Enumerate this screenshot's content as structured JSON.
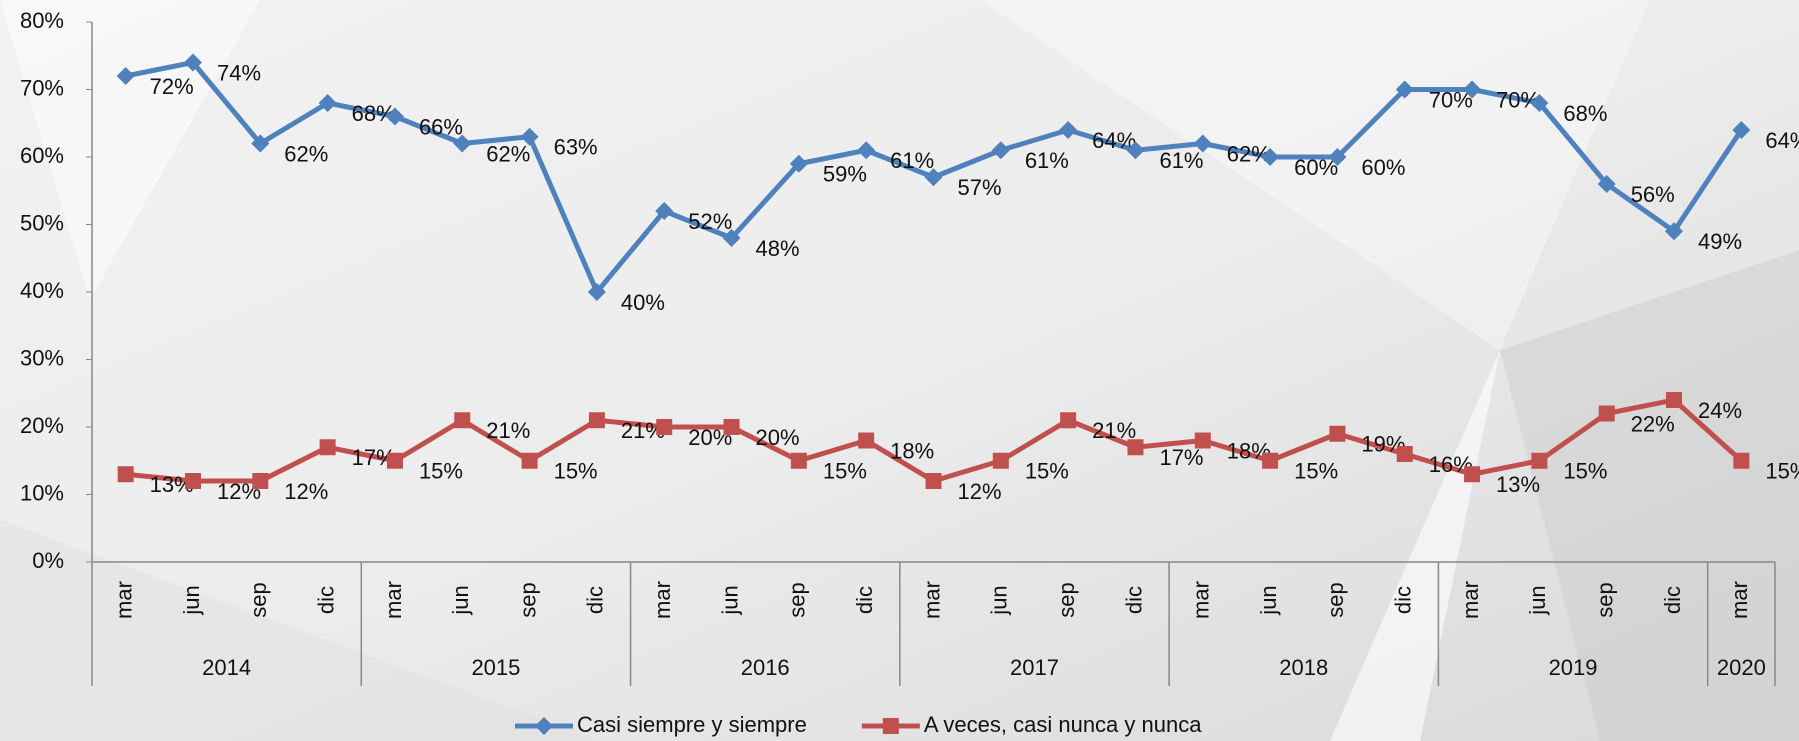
{
  "chart_data": {
    "type": "line",
    "groups": [
      {
        "label": "2014",
        "categories": [
          "mar",
          "jun",
          "sep",
          "dic"
        ]
      },
      {
        "label": "2015",
        "categories": [
          "mar",
          "jun",
          "sep",
          "dic"
        ]
      },
      {
        "label": "2016",
        "categories": [
          "mar",
          "jun",
          "sep",
          "dic"
        ]
      },
      {
        "label": "2017",
        "categories": [
          "mar",
          "jun",
          "sep",
          "dic"
        ]
      },
      {
        "label": "2018",
        "categories": [
          "mar",
          "jun",
          "sep",
          "dic"
        ]
      },
      {
        "label": "2019",
        "categories": [
          "mar",
          "jun",
          "sep",
          "dic"
        ]
      },
      {
        "label": "2020",
        "categories": [
          "mar"
        ]
      }
    ],
    "series": [
      {
        "name": "Casi siempre y siempre",
        "color": "#4f81bd",
        "marker": "diamond",
        "values": [
          72,
          74,
          62,
          68,
          66,
          62,
          63,
          40,
          52,
          48,
          59,
          61,
          57,
          61,
          64,
          61,
          62,
          60,
          60,
          70,
          70,
          68,
          56,
          49,
          64
        ],
        "value_labels": [
          "72%",
          "74%",
          "62%",
          "68%",
          "66%",
          "62%",
          "63%",
          "40%",
          "52%",
          "48%",
          "59%",
          "61%",
          "57%",
          "61%",
          "64%",
          "61%",
          "62%",
          "60%",
          "60%",
          "70%",
          "70%",
          "68%",
          "56%",
          "49%",
          "64%"
        ]
      },
      {
        "name": "A veces, casi nunca y nunca",
        "color": "#c0504d",
        "marker": "square",
        "values": [
          13,
          12,
          12,
          17,
          15,
          21,
          15,
          21,
          20,
          20,
          15,
          18,
          12,
          15,
          21,
          17,
          18,
          15,
          19,
          16,
          13,
          15,
          22,
          24,
          15
        ],
        "value_labels": [
          "13%",
          "12%",
          "12%",
          "17%",
          "15%",
          "21%",
          "15%",
          "21%",
          "20%",
          "20%",
          "15%",
          "18%",
          "12%",
          "15%",
          "21%",
          "17%",
          "18%",
          "15%",
          "19%",
          "16%",
          "13%",
          "15%",
          "22%",
          "24%",
          "15%"
        ]
      }
    ],
    "ylim": [
      0,
      80
    ],
    "yticks": [
      {
        "value": 0,
        "label": "0%"
      },
      {
        "value": 10,
        "label": "10%"
      },
      {
        "value": 20,
        "label": "20%"
      },
      {
        "value": 30,
        "label": "30%"
      },
      {
        "value": 40,
        "label": "40%"
      },
      {
        "value": 50,
        "label": "50%"
      },
      {
        "value": 60,
        "label": "60%"
      },
      {
        "value": 70,
        "label": "70%"
      },
      {
        "value": 80,
        "label": "80%"
      }
    ],
    "legend": "bottom"
  }
}
